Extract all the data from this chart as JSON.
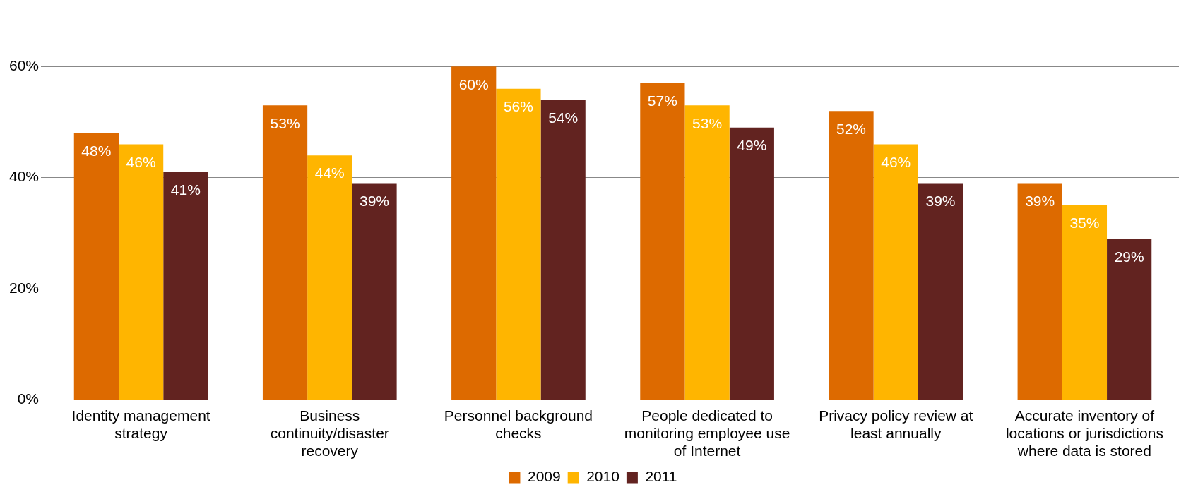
{
  "chart_data": {
    "type": "bar",
    "categories": [
      "Identity management strategy",
      "Business continuity/disaster recovery",
      "Personnel background checks",
      "People dedicated to monitoring employee use of Internet",
      "Privacy policy review at least annually",
      "Accurate inventory of locations or jurisdictions where data is stored"
    ],
    "series": [
      {
        "name": "2009",
        "color": "#dd6a00",
        "values": [
          48,
          53,
          60,
          57,
          52,
          39
        ],
        "value_labels": [
          "48%",
          "53%",
          "60%",
          "57%",
          "52%",
          "39%"
        ]
      },
      {
        "name": "2010",
        "color": "#ffb500",
        "values": [
          46,
          44,
          56,
          53,
          46,
          35
        ],
        "value_labels": [
          "46%",
          "44%",
          "56%",
          "53%",
          "46%",
          "35%"
        ]
      },
      {
        "name": "2011",
        "color": "#622320",
        "values": [
          41,
          39,
          54,
          49,
          39,
          29
        ],
        "value_labels": [
          "41%",
          "39%",
          "54%",
          "49%",
          "39%",
          "29%"
        ]
      }
    ],
    "ylim": [
      0,
      70
    ],
    "yticks": [
      {
        "value": 0,
        "label": "0%"
      },
      {
        "value": 20,
        "label": "20%"
      },
      {
        "value": 40,
        "label": "40%"
      },
      {
        "value": 60,
        "label": "60%"
      }
    ],
    "grid": "y",
    "legend": "bottom"
  }
}
